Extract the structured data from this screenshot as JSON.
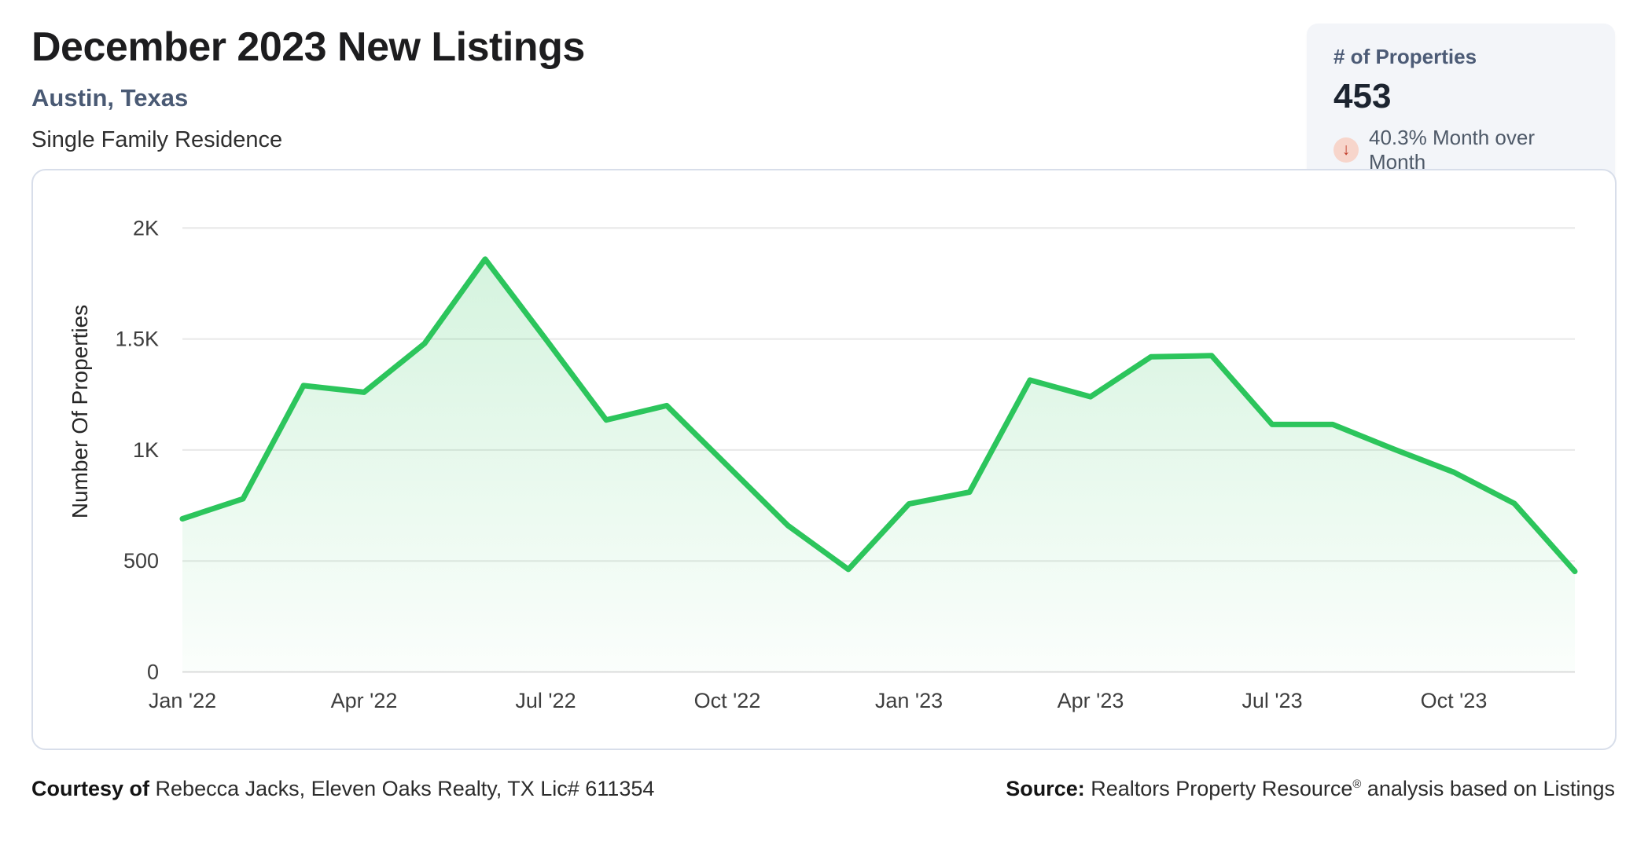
{
  "header": {
    "title": "December 2023 New Listings",
    "subtitle": "Austin, Texas",
    "property_type": "Single Family Residence"
  },
  "stat_card": {
    "label": "# of Properties",
    "value": "453",
    "change_text": "40.3% Month over Month",
    "change_direction": "down",
    "arrow_glyph": "↓",
    "colors": {
      "card_bg": "#f3f5f9",
      "label": "#4c5b76",
      "value": "#1c2430",
      "arrow": "#c03a27",
      "arrow_bg": "#f7d5cb",
      "change_text": "#4e5968"
    }
  },
  "chart_data": {
    "type": "area",
    "title": "",
    "xlabel": "",
    "ylabel": "Number Of Properties",
    "x": [
      "Jan '22",
      "Feb '22",
      "Mar '22",
      "Apr '22",
      "May '22",
      "Jun '22",
      "Jul '22",
      "Aug '22",
      "Sep '22",
      "Oct '22",
      "Nov '22",
      "Dec '22",
      "Jan '23",
      "Feb '23",
      "Mar '23",
      "Apr '23",
      "May '23",
      "Jun '23",
      "Jul '23",
      "Aug '23",
      "Sep '23",
      "Oct '23",
      "Nov '23",
      "Dec '23"
    ],
    "values": [
      690,
      780,
      1290,
      1260,
      1480,
      1860,
      1500,
      1135,
      1200,
      930,
      660,
      462,
      757,
      810,
      1315,
      1240,
      1420,
      1425,
      1115,
      1115,
      1005,
      900,
      759,
      453
    ],
    "x_tick_labels": [
      "Jan '22",
      "Apr '22",
      "Jul '22",
      "Oct '22",
      "Jan '23",
      "Apr '23",
      "Jul '23",
      "Oct '23"
    ],
    "y_ticks": [
      {
        "v": 0,
        "label": "0"
      },
      {
        "v": 500,
        "label": "500"
      },
      {
        "v": 1000,
        "label": "1K"
      },
      {
        "v": 1500,
        "label": "1.5K"
      },
      {
        "v": 2000,
        "label": "2K"
      }
    ],
    "ylim": [
      0,
      2000
    ],
    "grid": "horizontal",
    "legend": "none",
    "line_color": "#2cc55c",
    "fill_top": "rgba(45,198,92,0.20)",
    "fill_bottom": "rgba(45,198,92,0.02)",
    "gridline_color": "#e8e8e8",
    "zeroline_color": "#dcdcdc",
    "tick_color": "#3e3e3e"
  },
  "footer": {
    "courtesy_label": "Courtesy of",
    "courtesy_text": " Rebecca Jacks, Eleven Oaks Realty, TX Lic# 611354",
    "source_label": "Source:",
    "source_name": " Realtors Property Resource",
    "source_reg": "®",
    "source_rest": " analysis based on Listings"
  }
}
